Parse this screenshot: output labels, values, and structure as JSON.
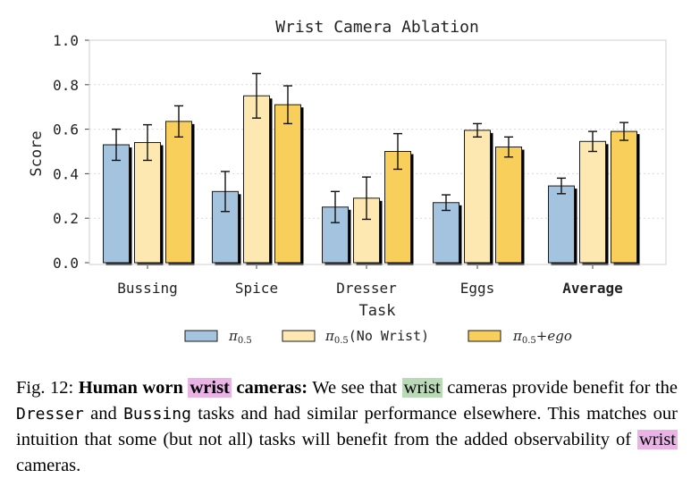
{
  "chart_data": {
    "type": "bar",
    "title": "Wrist Camera Ablation",
    "xlabel": "Task",
    "ylabel": "Score",
    "ylim": [
      0,
      1.0
    ],
    "yticks": [
      "0.0",
      "0.2",
      "0.4",
      "0.6",
      "0.8",
      "1.0"
    ],
    "grid": true,
    "legend_position": "bottom",
    "categories": [
      "Bussing",
      "Spice",
      "Dresser",
      "Eggs",
      "Average"
    ],
    "series": [
      {
        "name": "π0.5",
        "label_main": "π",
        "label_sub": "0.5",
        "label_suffix": "",
        "color": "#a4c3df",
        "values": [
          0.53,
          0.32,
          0.25,
          0.27,
          0.345
        ],
        "errors": [
          0.07,
          0.09,
          0.07,
          0.035,
          0.035
        ]
      },
      {
        "name": "π0.5(No Wrist)",
        "label_main": "π",
        "label_sub": "0.5",
        "label_suffix": "(No Wrist)",
        "color": "#fde8b1",
        "values": [
          0.54,
          0.75,
          0.29,
          0.595,
          0.545
        ],
        "errors": [
          0.08,
          0.1,
          0.095,
          0.03,
          0.045
        ]
      },
      {
        "name": "π0.5+ego",
        "label_main": "π",
        "label_sub": "0.5",
        "label_suffix": "+ego",
        "color": "#f9cf5c",
        "values": [
          0.635,
          0.71,
          0.5,
          0.52,
          0.59
        ],
        "errors": [
          0.07,
          0.085,
          0.08,
          0.045,
          0.04
        ]
      }
    ]
  },
  "caption": {
    "prefix": "Fig. 12: ",
    "bold_lead": "Human worn ",
    "bold_hl": "wrist",
    "bold_tail": " cameras:",
    "t1": " We see that ",
    "hl2": "wrist",
    "t2": " cameras provide benefit for the ",
    "code1": "Dresser",
    "t3": " and ",
    "code2": "Bussing",
    "t4": " tasks and had similar performance elsewhere. This matches our intuition that some (but not all) tasks will benefit from the added observability of ",
    "hl3": "wrist",
    "t5": " cameras."
  }
}
